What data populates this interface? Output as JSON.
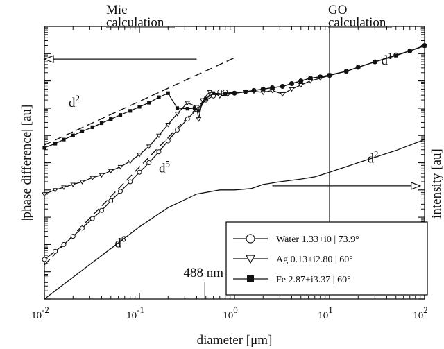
{
  "chart_data": {
    "type": "line",
    "xscale": "log",
    "xlim": [
      0.01,
      100
    ],
    "xlabel": "diameter [μm]",
    "ylabel_left": "|phase difference| [au]",
    "ylabel_right": "intensity [au]",
    "x_ticks": [
      {
        "value": 0.01,
        "base": "10",
        "exp": "-2"
      },
      {
        "value": 0.1,
        "base": "10",
        "exp": "-1"
      },
      {
        "value": 1,
        "base": "10",
        "exp": "0"
      },
      {
        "value": 10,
        "base": "10",
        "exp": "1"
      },
      {
        "value": 100,
        "base": "10",
        "exp": "2"
      }
    ],
    "legend": {
      "placement": "bottom-right",
      "entries": [
        {
          "label": "Water 1.33+i0 | 73.9°",
          "marker": "circle-open"
        },
        {
          "label": "Ag 0.13+i2.80 | 60°",
          "marker": "triangle-open"
        },
        {
          "label": "Fe 2.87+i3.37 | 60°",
          "marker": "square-filled"
        }
      ]
    },
    "regions": [
      {
        "label_line1": "Mie",
        "label_line2": "calculation"
      },
      {
        "label_line1": "GO",
        "label_line2": "calculation",
        "boundary_x": 10
      }
    ],
    "marker_488": {
      "label": "488 nm",
      "x": 0.488
    },
    "slope_labels": [
      {
        "base": "d",
        "exp": "2",
        "x": 0.018,
        "y": 0.705
      },
      {
        "base": "d",
        "exp": "5",
        "x": 0.16,
        "y": 0.465
      },
      {
        "base": "d",
        "exp": "6",
        "x": 0.055,
        "y": 0.19
      },
      {
        "base": "d",
        "exp": "1",
        "x": 35,
        "y": 0.86
      },
      {
        "base": "d",
        "exp": "2",
        "x": 25,
        "y": 0.5
      }
    ],
    "arrows": [
      {
        "direction": "left",
        "axis": "left",
        "x_from": 0.4,
        "x_to": 0.01,
        "y": 0.88
      },
      {
        "direction": "right",
        "axis": "right",
        "x_from": 2.5,
        "x_to": 90,
        "y": 0.415
      }
    ],
    "y_range": [
      0,
      1
    ],
    "series": [
      {
        "name": "Water 1.33+i0 | 73.9°",
        "marker": "circle-open",
        "points": [
          [
            0.01,
            0.145
          ],
          [
            0.013,
            0.175
          ],
          [
            0.016,
            0.2
          ],
          [
            0.02,
            0.23
          ],
          [
            0.025,
            0.26
          ],
          [
            0.032,
            0.295
          ],
          [
            0.04,
            0.325
          ],
          [
            0.05,
            0.36
          ],
          [
            0.063,
            0.395
          ],
          [
            0.08,
            0.43
          ],
          [
            0.1,
            0.465
          ],
          [
            0.126,
            0.5
          ],
          [
            0.16,
            0.54
          ],
          [
            0.2,
            0.58
          ],
          [
            0.25,
            0.62
          ],
          [
            0.32,
            0.66
          ],
          [
            0.4,
            0.695
          ],
          [
            0.5,
            0.73
          ],
          [
            0.6,
            0.745
          ],
          [
            0.7,
            0.76
          ],
          [
            0.8,
            0.76
          ],
          [
            1,
            0.755
          ],
          [
            1.3,
            0.76
          ],
          [
            1.6,
            0.765
          ],
          [
            2,
            0.77
          ],
          [
            2.5,
            0.775
          ],
          [
            3.2,
            0.78
          ],
          [
            4,
            0.79
          ],
          [
            5,
            0.8
          ],
          [
            6.3,
            0.81
          ],
          [
            8,
            0.815
          ],
          [
            10,
            0.82
          ],
          [
            15,
            0.835
          ],
          [
            20,
            0.85
          ],
          [
            30,
            0.87
          ],
          [
            50,
            0.895
          ],
          [
            70,
            0.91
          ],
          [
            100,
            0.93
          ]
        ]
      },
      {
        "name": "Ag 0.13+i2.80 | 60°",
        "marker": "triangle-open",
        "points": [
          [
            0.01,
            0.385
          ],
          [
            0.013,
            0.4
          ],
          [
            0.016,
            0.41
          ],
          [
            0.02,
            0.42
          ],
          [
            0.025,
            0.43
          ],
          [
            0.032,
            0.445
          ],
          [
            0.04,
            0.455
          ],
          [
            0.05,
            0.47
          ],
          [
            0.063,
            0.485
          ],
          [
            0.08,
            0.505
          ],
          [
            0.1,
            0.53
          ],
          [
            0.126,
            0.56
          ],
          [
            0.16,
            0.6
          ],
          [
            0.2,
            0.64
          ],
          [
            0.25,
            0.68
          ],
          [
            0.32,
            0.72
          ],
          [
            0.4,
            0.705
          ],
          [
            0.42,
            0.66
          ],
          [
            0.46,
            0.73
          ],
          [
            0.55,
            0.76
          ],
          [
            0.7,
            0.745
          ],
          [
            0.85,
            0.75
          ],
          [
            1,
            0.755
          ],
          [
            1.3,
            0.76
          ],
          [
            1.6,
            0.762
          ],
          [
            2,
            0.758
          ],
          [
            2.5,
            0.765
          ],
          [
            3.2,
            0.752
          ],
          [
            4,
            0.77
          ],
          [
            5,
            0.785
          ],
          [
            6.3,
            0.8
          ],
          [
            8,
            0.81
          ],
          [
            10,
            0.82
          ]
        ]
      },
      {
        "name": "Fe 2.87+i3.37 | 60°",
        "marker": "square-filled",
        "points": [
          [
            0.01,
            0.555
          ],
          [
            0.013,
            0.57
          ],
          [
            0.016,
            0.585
          ],
          [
            0.02,
            0.6
          ],
          [
            0.025,
            0.615
          ],
          [
            0.032,
            0.63
          ],
          [
            0.04,
            0.645
          ],
          [
            0.05,
            0.66
          ],
          [
            0.063,
            0.675
          ],
          [
            0.08,
            0.69
          ],
          [
            0.1,
            0.705
          ],
          [
            0.126,
            0.72
          ],
          [
            0.16,
            0.74
          ],
          [
            0.2,
            0.755
          ],
          [
            0.25,
            0.7
          ],
          [
            0.32,
            0.698
          ],
          [
            0.38,
            0.7
          ],
          [
            0.42,
            0.69
          ],
          [
            0.5,
            0.735
          ],
          [
            0.6,
            0.755
          ],
          [
            0.8,
            0.752
          ],
          [
            1,
            0.755
          ],
          [
            1.3,
            0.76
          ],
          [
            1.6,
            0.765
          ],
          [
            2,
            0.77
          ],
          [
            2.5,
            0.775
          ],
          [
            3.2,
            0.78
          ],
          [
            4,
            0.79
          ],
          [
            5,
            0.8
          ],
          [
            6.3,
            0.81
          ],
          [
            8,
            0.815
          ],
          [
            10,
            0.822
          ],
          [
            15,
            0.835
          ],
          [
            20,
            0.85
          ],
          [
            30,
            0.87
          ],
          [
            50,
            0.893
          ],
          [
            70,
            0.91
          ],
          [
            100,
            0.928
          ]
        ]
      },
      {
        "name": "",
        "marker": "none",
        "style": "solid",
        "axis": "right",
        "points": [
          [
            0.01,
            0.0
          ],
          [
            0.02,
            0.08
          ],
          [
            0.05,
            0.185
          ],
          [
            0.1,
            0.265
          ],
          [
            0.2,
            0.335
          ],
          [
            0.4,
            0.385
          ],
          [
            0.7,
            0.4
          ],
          [
            1,
            0.4
          ],
          [
            1.5,
            0.405
          ],
          [
            2,
            0.42
          ],
          [
            3,
            0.43
          ],
          [
            5,
            0.44
          ],
          [
            7,
            0.448
          ],
          [
            10,
            0.465
          ],
          [
            20,
            0.5
          ],
          [
            50,
            0.545
          ],
          [
            100,
            0.585
          ]
        ]
      }
    ],
    "guides": [
      {
        "style": "dashed",
        "points": [
          [
            0.01,
            0.565
          ],
          [
            1,
            0.885
          ]
        ]
      },
      {
        "style": "dashed",
        "points": [
          [
            0.01,
            0.125
          ],
          [
            0.55,
            0.75
          ]
        ]
      }
    ]
  }
}
